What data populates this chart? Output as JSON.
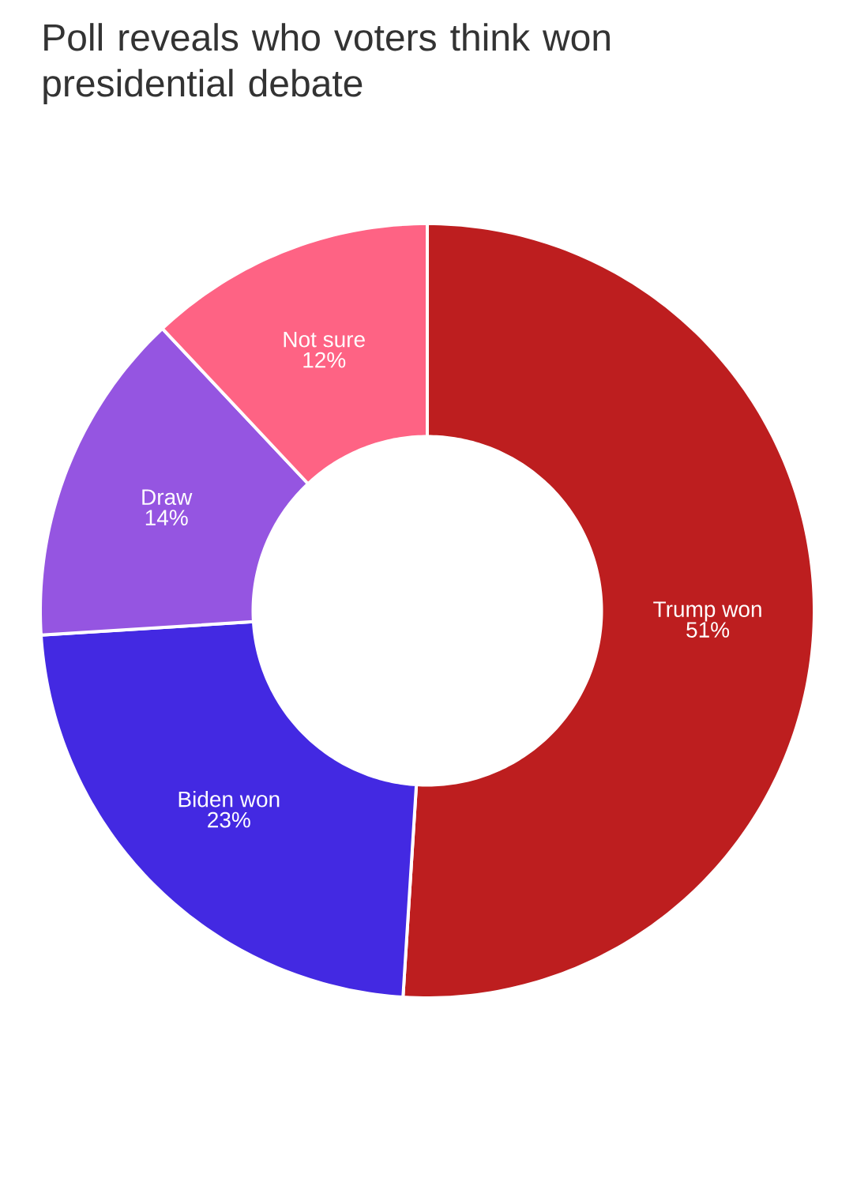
{
  "chart_data": {
    "type": "donut",
    "title": "Poll reveals who voters think won presidential debate",
    "categories": [
      "Trump won",
      "Biden won",
      "Draw",
      "Not sure"
    ],
    "values": [
      51,
      23,
      14,
      12
    ],
    "colors": [
      "#bd1e1f",
      "#4329e2",
      "#9555e1",
      "#fe6384"
    ],
    "value_labels": [
      "51%",
      "23%",
      "14%",
      "12%"
    ]
  }
}
